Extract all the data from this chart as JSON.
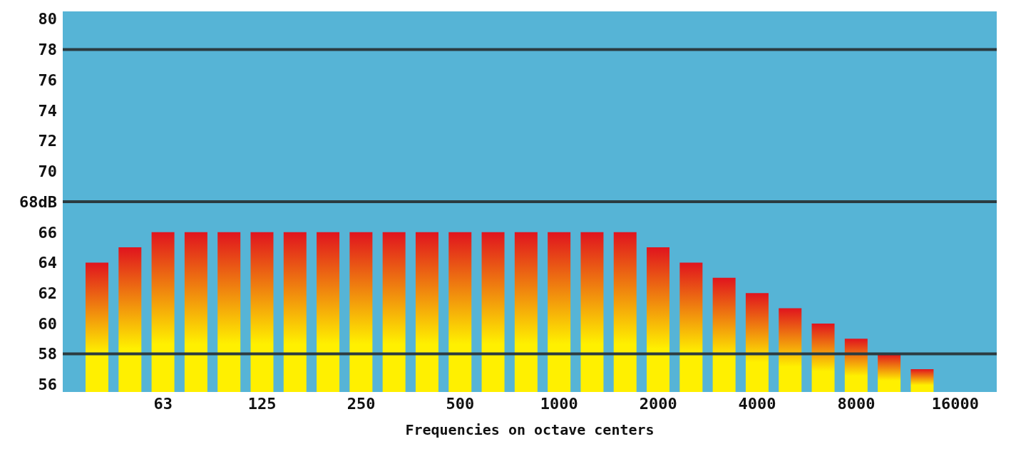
{
  "chart_data": {
    "type": "bar",
    "xlabel": "Frequencies on octave centers",
    "categories": [
      null,
      null,
      "63",
      null,
      null,
      "125",
      null,
      null,
      "250",
      null,
      null,
      "500",
      null,
      null,
      "1000",
      null,
      null,
      "2000",
      null,
      null,
      "4000",
      null,
      null,
      "8000",
      null,
      null,
      "16000"
    ],
    "series": [
      {
        "color": "#e0141e",
        "values": [
          64,
          65,
          66,
          66,
          66,
          66,
          66,
          66,
          66,
          66,
          66,
          66,
          66,
          66,
          66,
          66,
          66,
          65,
          64,
          63,
          62,
          61,
          60,
          59,
          58,
          57,
          null
        ]
      }
    ],
    "ylim": [
      55.5,
      80.5
    ],
    "yticks": [
      56,
      58,
      60,
      62,
      64,
      66,
      {
        "value": 68,
        "label": "68dB"
      },
      70,
      72,
      74,
      76,
      78,
      80
    ],
    "ref_lines": [
      {
        "axis": "y",
        "value": 78,
        "color": "#2b3b40"
      },
      {
        "axis": "y",
        "value": 68,
        "color": "#2b3b40"
      },
      {
        "axis": "y",
        "value": 58,
        "color": "#2b3b40"
      }
    ],
    "grid": false,
    "legend": false
  }
}
